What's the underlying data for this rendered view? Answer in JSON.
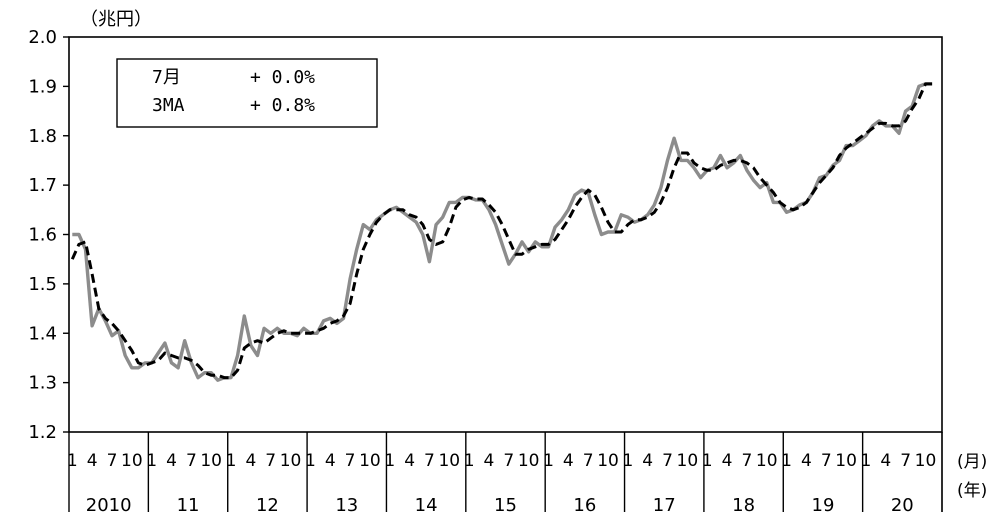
{
  "chart_data": {
    "type": "line",
    "unit_label": "（兆円）",
    "x_unit_month": "(月)",
    "x_unit_year": "(年)",
    "ylim": [
      1.2,
      2.0
    ],
    "yticks": [
      "1.2",
      "1.3",
      "1.4",
      "1.5",
      "1.6",
      "1.7",
      "1.8",
      "1.9",
      "2.0"
    ],
    "grid": false,
    "start": "2010-01",
    "month_tick_labels": [
      "1",
      "4",
      "7",
      "10"
    ],
    "years": [
      "2010",
      "11",
      "12",
      "13",
      "14",
      "15",
      "16",
      "17",
      "18",
      "19",
      "20"
    ],
    "legend": [
      {
        "label": "7月",
        "value": "+ 0.0%"
      },
      {
        "label": "3MA",
        "value": "+ 0.8%"
      }
    ],
    "series": [
      {
        "style": "solid-gray",
        "color": "#8c8c8c",
        "values": [
          1.6,
          1.6,
          1.57,
          1.415,
          1.45,
          1.425,
          1.395,
          1.405,
          1.355,
          1.33,
          1.33,
          1.34,
          1.34,
          1.36,
          1.38,
          1.34,
          1.33,
          1.385,
          1.34,
          1.31,
          1.32,
          1.32,
          1.305,
          1.31,
          1.31,
          1.355,
          1.435,
          1.375,
          1.355,
          1.41,
          1.4,
          1.41,
          1.4,
          1.4,
          1.395,
          1.41,
          1.4,
          1.4,
          1.425,
          1.43,
          1.42,
          1.43,
          1.51,
          1.57,
          1.62,
          1.61,
          1.63,
          1.64,
          1.65,
          1.655,
          1.645,
          1.635,
          1.625,
          1.6,
          1.545,
          1.62,
          1.635,
          1.665,
          1.665,
          1.675,
          1.675,
          1.67,
          1.67,
          1.65,
          1.62,
          1.58,
          1.54,
          1.56,
          1.585,
          1.565,
          1.585,
          1.575,
          1.575,
          1.615,
          1.63,
          1.65,
          1.68,
          1.69,
          1.685,
          1.64,
          1.6,
          1.605,
          1.605,
          1.64,
          1.635,
          1.625,
          1.63,
          1.64,
          1.66,
          1.695,
          1.75,
          1.795,
          1.75,
          1.75,
          1.735,
          1.715,
          1.73,
          1.735,
          1.76,
          1.735,
          1.745,
          1.76,
          1.73,
          1.71,
          1.695,
          1.705,
          1.665,
          1.665,
          1.645,
          1.65,
          1.66,
          1.665,
          1.685,
          1.715,
          1.72,
          1.74,
          1.75,
          1.78,
          1.78,
          1.79,
          1.8,
          1.82,
          1.83,
          1.82,
          1.82,
          1.805,
          1.85,
          1.86,
          1.9,
          1.905,
          1.905
        ]
      },
      {
        "style": "dashed-black",
        "color": "#000000",
        "values": [
          1.55,
          1.58,
          1.585,
          1.52,
          1.45,
          1.43,
          1.42,
          1.405,
          1.385,
          1.365,
          1.34,
          1.335,
          1.34,
          1.345,
          1.36,
          1.355,
          1.35,
          1.35,
          1.345,
          1.335,
          1.32,
          1.315,
          1.315,
          1.31,
          1.31,
          1.325,
          1.37,
          1.38,
          1.385,
          1.38,
          1.39,
          1.4,
          1.405,
          1.4,
          1.4,
          1.4,
          1.4,
          1.405,
          1.41,
          1.42,
          1.425,
          1.435,
          1.46,
          1.52,
          1.57,
          1.6,
          1.625,
          1.64,
          1.65,
          1.65,
          1.65,
          1.64,
          1.635,
          1.62,
          1.59,
          1.58,
          1.585,
          1.615,
          1.655,
          1.67,
          1.675,
          1.672,
          1.672,
          1.66,
          1.645,
          1.62,
          1.59,
          1.56,
          1.56,
          1.57,
          1.575,
          1.58,
          1.58,
          1.59,
          1.61,
          1.63,
          1.655,
          1.675,
          1.69,
          1.68,
          1.655,
          1.625,
          1.605,
          1.605,
          1.62,
          1.63,
          1.63,
          1.635,
          1.645,
          1.665,
          1.695,
          1.735,
          1.765,
          1.765,
          1.745,
          1.735,
          1.73,
          1.73,
          1.74,
          1.745,
          1.75,
          1.75,
          1.745,
          1.735,
          1.715,
          1.7,
          1.685,
          1.665,
          1.655,
          1.65,
          1.655,
          1.665,
          1.685,
          1.705,
          1.72,
          1.735,
          1.76,
          1.775,
          1.785,
          1.795,
          1.805,
          1.815,
          1.825,
          1.825,
          1.82,
          1.82,
          1.83,
          1.855,
          1.875,
          1.905,
          1.905
        ]
      }
    ]
  }
}
